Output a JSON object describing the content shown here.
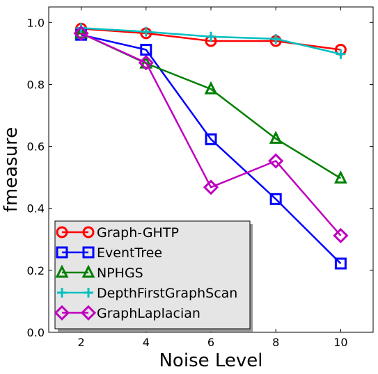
{
  "chart_data": {
    "type": "line",
    "title": "",
    "xlabel": "Noise Level",
    "ylabel": "fmeasure",
    "x": [
      2,
      4,
      6,
      8,
      10
    ],
    "xlim": [
      1,
      11
    ],
    "ylim": [
      0.0,
      1.05
    ],
    "xticks": [
      "2",
      "4",
      "6",
      "8",
      "10"
    ],
    "yticks": [
      "0.0",
      "0.2",
      "0.4",
      "0.6",
      "0.8",
      "1.0"
    ],
    "grid": false,
    "legend_position": "bottom-left",
    "series": [
      {
        "name": "Graph-GHTP",
        "color": "#ff0000",
        "marker": "circle",
        "values": [
          0.98,
          0.965,
          0.94,
          0.94,
          0.912
        ]
      },
      {
        "name": "EventTree",
        "color": "#0000ff",
        "marker": "square",
        "values": [
          0.96,
          0.912,
          0.623,
          0.43,
          0.222
        ]
      },
      {
        "name": "NPHGS",
        "color": "#008000",
        "marker": "triangle",
        "values": [
          0.965,
          0.868,
          0.785,
          0.625,
          0.497
        ]
      },
      {
        "name": "DepthFirstGraphScan",
        "color": "#00bfbf",
        "marker": "plus",
        "values": [
          0.982,
          0.97,
          0.954,
          0.947,
          0.898
        ]
      },
      {
        "name": "GraphLaplacian",
        "color": "#bf00bf",
        "marker": "diamond",
        "values": [
          0.965,
          0.87,
          0.468,
          0.553,
          0.312
        ]
      }
    ]
  }
}
